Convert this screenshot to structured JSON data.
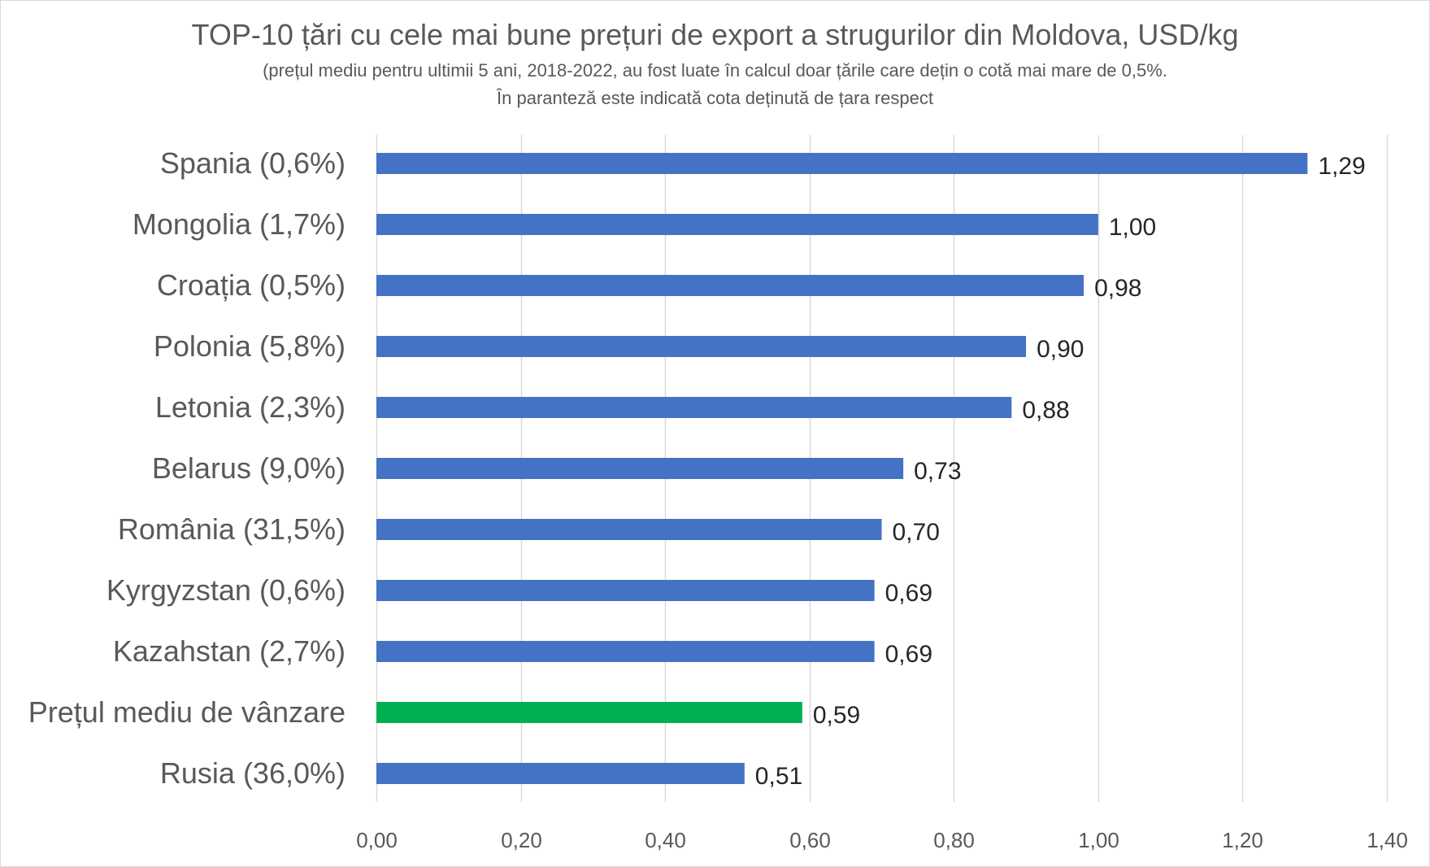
{
  "chart_data": {
    "type": "bar",
    "orientation": "horizontal",
    "title": "TOP-10 țări cu cele mai bune prețuri de export a strugurilor din Moldova, USD/kg",
    "subtitle_line1": "(prețul mediu pentru ultimii 5 ani, 2018-2022, au fost luate în calcul doar țările care dețin o cotă mai mare de 0,5%.",
    "subtitle_line2": "În paranteză este indicată cota deținută de țara respect",
    "categories": [
      "Spania (0,6%)",
      "Mongolia (1,7%)",
      "Croația (0,5%)",
      "Polonia (5,8%)",
      "Letonia (2,3%)",
      "Belarus (9,0%)",
      "România (31,5%)",
      "Kyrgyzstan (0,6%)",
      "Kazahstan (2,7%)",
      "Prețul mediu de vânzare",
      "Rusia (36,0%)"
    ],
    "values": [
      1.29,
      1.0,
      0.98,
      0.9,
      0.88,
      0.73,
      0.7,
      0.69,
      0.69,
      0.59,
      0.51
    ],
    "value_labels": [
      "1,29",
      "1,00",
      "0,98",
      "0,90",
      "0,88",
      "0,73",
      "0,70",
      "0,69",
      "0,69",
      "0,59",
      "0,51"
    ],
    "highlight_index": 9,
    "colors": {
      "bar": "#4472C4",
      "highlight": "#00B050",
      "grid": "#d9d9d9"
    },
    "xlim": [
      0,
      1.4
    ],
    "x_ticks": [
      0,
      0.2,
      0.4,
      0.6,
      0.8,
      1.0,
      1.2,
      1.4
    ],
    "x_tick_labels": [
      "0,00",
      "0,20",
      "0,40",
      "0,60",
      "0,80",
      "1,00",
      "1,20",
      "1,40"
    ],
    "grid": true,
    "legend": "none"
  }
}
